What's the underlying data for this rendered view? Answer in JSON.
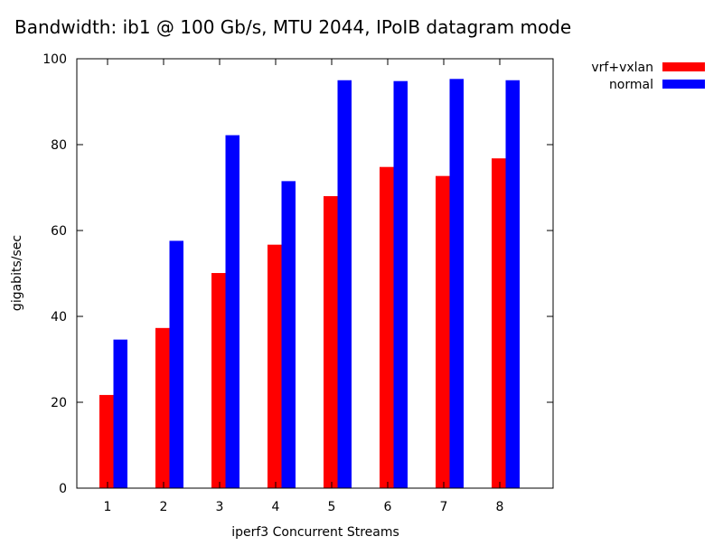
{
  "chart_data": {
    "type": "bar",
    "title": "Bandwidth: ib1 @ 100 Gb/s, MTU 2044, IPoIB datagram mode",
    "xlabel": "iperf3 Concurrent Streams",
    "ylabel": "gigabits/sec",
    "categories": [
      "1",
      "2",
      "3",
      "4",
      "5",
      "6",
      "7",
      "8"
    ],
    "ylim": [
      0,
      100
    ],
    "yticks": [
      0,
      20,
      40,
      60,
      80,
      100
    ],
    "legend_position": "outside-top-right",
    "grid": false,
    "series": [
      {
        "name": "vrf+vxlan",
        "color": "#ff0000",
        "values": [
          21.7,
          37.3,
          50.1,
          56.7,
          68.0,
          74.8,
          72.7,
          76.8
        ]
      },
      {
        "name": "normal",
        "color": "#0000ff",
        "values": [
          34.6,
          57.6,
          82.2,
          71.5,
          95.0,
          94.8,
          95.3,
          95.0
        ]
      }
    ]
  }
}
